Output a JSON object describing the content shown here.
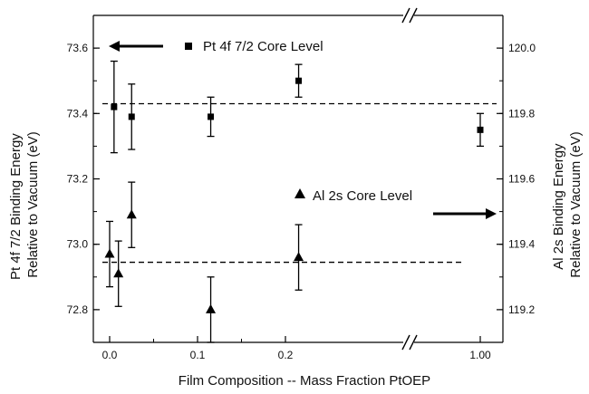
{
  "chart_data": {
    "type": "scatter",
    "xlabel": "Film Composition -- Mass Fraction PtOEP",
    "ylabel_left": [
      "Pt 4f 7/2 Binding Energy",
      "Relative to Vacuum (eV)"
    ],
    "ylabel_right": [
      "Al 2s Binding Energy",
      "Relative to Vacuum (eV)"
    ],
    "x_ticks": [
      "0.0",
      "0.1",
      "0.2",
      "1.00"
    ],
    "x_axis_break": "//",
    "y_left_range": [
      72.7,
      73.7
    ],
    "y_left_ticks": [
      "72.8",
      "73.0",
      "73.2",
      "73.4",
      "73.6"
    ],
    "y_right_range": [
      119.1,
      120.1
    ],
    "y_right_ticks": [
      "119.2",
      "119.4",
      "119.6",
      "119.8",
      "120.0"
    ],
    "grid": false,
    "legend": [
      {
        "label": "Pt 4f 7/2 Core Level",
        "marker": "square",
        "axis": "left",
        "arrow": "left"
      },
      {
        "label": "Al 2s Core Level",
        "marker": "triangle",
        "axis": "right",
        "arrow": "right"
      }
    ],
    "series": [
      {
        "marker": "square",
        "axis": "left",
        "points": [
          {
            "x": 0.005,
            "y": 73.42,
            "err_low": 73.28,
            "err_high": 73.56
          },
          {
            "x": 0.025,
            "y": 73.39,
            "err_low": 73.29,
            "err_high": 73.49
          },
          {
            "x": 0.115,
            "y": 73.39,
            "err_low": 73.33,
            "err_high": 73.45
          },
          {
            "x": 0.215,
            "y": 73.5,
            "err_low": 73.45,
            "err_high": 73.55
          },
          {
            "x": 1.0,
            "y": 73.35,
            "err_low": 73.3,
            "err_high": 73.4
          }
        ],
        "mean_line": 73.43
      },
      {
        "marker": "triangle",
        "axis": "right",
        "points": [
          {
            "x": 0.0,
            "y": 119.37,
            "err_low": 119.27,
            "err_high": 119.47
          },
          {
            "x": 0.01,
            "y": 119.31,
            "err_low": 119.21,
            "err_high": 119.41
          },
          {
            "x": 0.025,
            "y": 119.49,
            "err_low": 119.39,
            "err_high": 119.59
          },
          {
            "x": 0.115,
            "y": 119.2,
            "err_low": 119.1,
            "err_high": 119.3
          },
          {
            "x": 0.215,
            "y": 119.36,
            "err_low": 119.26,
            "err_high": 119.46
          }
        ],
        "mean_line": 119.345
      }
    ]
  }
}
